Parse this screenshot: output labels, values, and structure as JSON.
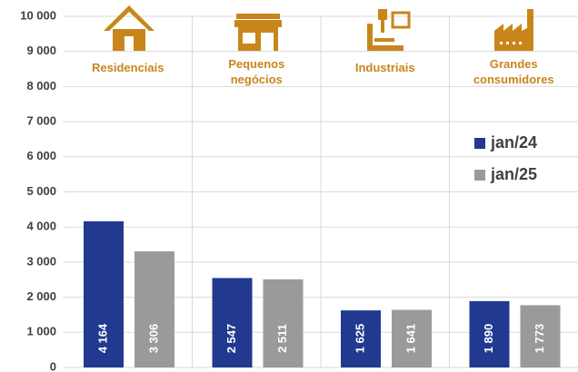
{
  "chart_data": {
    "type": "bar",
    "categories": [
      "Residenciais",
      "Pequenos negócios",
      "Industriais",
      "Grandes consumidores"
    ],
    "series": [
      {
        "name": "jan/24",
        "color": "#213a8f",
        "values": [
          4164,
          2547,
          1625,
          1890
        ],
        "value_labels": [
          "4 164",
          "2 547",
          "1 625",
          "1 890"
        ]
      },
      {
        "name": "jan/25",
        "color": "#9a9a9a",
        "values": [
          3306,
          2511,
          1641,
          1773
        ],
        "value_labels": [
          "3 306",
          "2 511",
          "1 641",
          "1 773"
        ]
      }
    ],
    "ylim": [
      0,
      10000
    ],
    "yticks": [
      0,
      {
        "value": 1000,
        "label": "1 000"
      },
      {
        "value": 2000,
        "label": "2 000"
      },
      {
        "value": 3000,
        "label": "3 000"
      },
      {
        "value": 4000,
        "label": "4 000"
      },
      {
        "value": 5000,
        "label": "5 000"
      },
      {
        "value": 6000,
        "label": "6 000"
      },
      {
        "value": 7000,
        "label": "7 000"
      },
      {
        "value": 8000,
        "label": "8 000"
      },
      {
        "value": 9000,
        "label": "9 000"
      },
      {
        "value": 10000,
        "label": "10 000"
      }
    ],
    "grid": true,
    "legend": "right"
  }
}
